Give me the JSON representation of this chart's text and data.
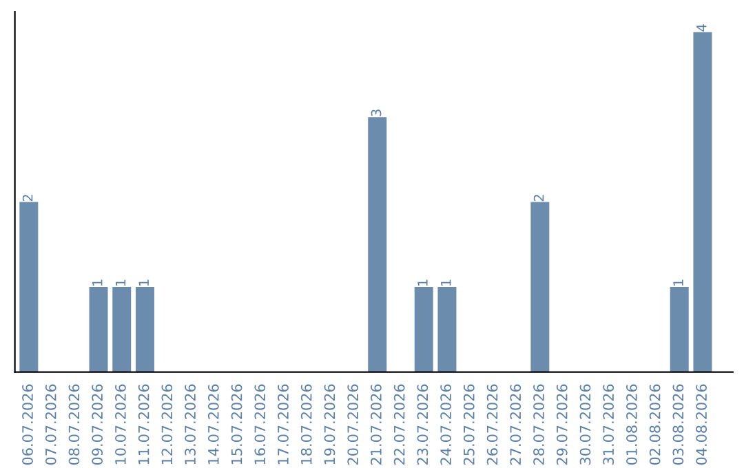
{
  "chart_data": {
    "type": "bar",
    "categories": [
      "06.07.2026",
      "07.07.2026",
      "08.07.2026",
      "09.07.2026",
      "10.07.2026",
      "11.07.2026",
      "12.07.2026",
      "13.07.2026",
      "14.07.2026",
      "15.07.2026",
      "16.07.2026",
      "17.07.2026",
      "18.07.2026",
      "19.07.2026",
      "20.07.2026",
      "21.07.2026",
      "22.07.2026",
      "23.07.2026",
      "24.07.2026",
      "25.07.2026",
      "26.07.2026",
      "27.07.2026",
      "28.07.2026",
      "29.07.2026",
      "30.07.2026",
      "31.07.2026",
      "01.08.2026",
      "02.08.2026",
      "03.08.2026",
      "04.08.2026"
    ],
    "values": [
      2,
      0,
      0,
      1,
      1,
      1,
      0,
      0,
      0,
      0,
      0,
      0,
      0,
      0,
      0,
      3,
      0,
      1,
      1,
      0,
      0,
      0,
      2,
      0,
      0,
      0,
      0,
      0,
      1,
      4
    ],
    "value_labels": [
      "2",
      null,
      null,
      "1",
      "1",
      "1",
      null,
      null,
      null,
      null,
      null,
      null,
      null,
      null,
      null,
      "3",
      null,
      "1",
      "1",
      null,
      null,
      null,
      "2",
      null,
      null,
      null,
      null,
      null,
      "1",
      "4"
    ],
    "color": "#6b8cad",
    "grid": false,
    "legend": false
  }
}
